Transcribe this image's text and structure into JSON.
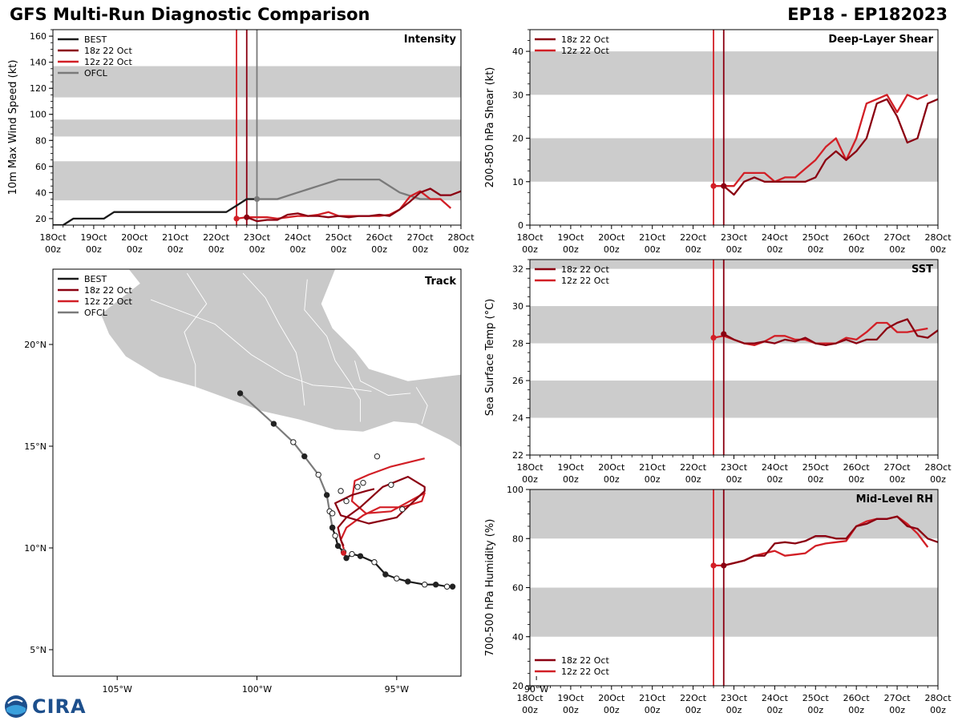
{
  "header": {
    "title_left": "GFS Multi-Run Diagnostic Comparison",
    "title_right": "EP18 - EP182023"
  },
  "time_axis": {
    "ticks": [
      {
        "day": 0,
        "line1": "18Oct",
        "line2": "00z"
      },
      {
        "day": 1,
        "line1": "19Oct",
        "line2": "00z"
      },
      {
        "day": 2,
        "line1": "20Oct",
        "line2": "00z"
      },
      {
        "day": 3,
        "line1": "21Oct",
        "line2": "00z"
      },
      {
        "day": 4,
        "line1": "22Oct",
        "line2": "00z"
      },
      {
        "day": 5,
        "line1": "23Oct",
        "line2": "00z"
      },
      {
        "day": 6,
        "line1": "24Oct",
        "line2": "00z"
      },
      {
        "day": 7,
        "line1": "25Oct",
        "line2": "00z"
      },
      {
        "day": 8,
        "line1": "26Oct",
        "line2": "00z"
      },
      {
        "day": 9,
        "line1": "27Oct",
        "line2": "00z"
      },
      {
        "day": 10,
        "line1": "28Oct",
        "line2": "00z"
      }
    ],
    "xlim": [
      0,
      10
    ]
  },
  "colors": {
    "best": "#1a1a1a",
    "run18": "#8b0011",
    "run12": "#d21f26",
    "ofcl": "#7a7a7a",
    "band": "#cccccc",
    "land": "#c9c9c9"
  },
  "legend_labels": {
    "best": "BEST",
    "run18": "18z 22 Oct",
    "run12": "12z 22 Oct",
    "ofcl": "OFCL"
  },
  "logo": {
    "text": "CIRA"
  },
  "chart_data": [
    {
      "id": "intensity",
      "type": "line",
      "title": "Intensity",
      "ylabel": "10m Max Wind Speed (kt)",
      "ylim": [
        15,
        165
      ],
      "yticks": [
        20,
        40,
        60,
        80,
        100,
        120,
        140,
        160
      ],
      "bands": [
        [
          34,
          64
        ],
        [
          83,
          96
        ],
        [
          113,
          137
        ]
      ],
      "vlines": [
        {
          "x": 4.5,
          "series": "run12"
        },
        {
          "x": 4.75,
          "series": "run18"
        },
        {
          "x": 5.0,
          "series": "ofcl"
        }
      ],
      "legend": [
        "best",
        "run18",
        "run12",
        "ofcl"
      ],
      "series": [
        {
          "key": "best",
          "x": [
            0,
            0.25,
            0.5,
            0.75,
            1.0,
            1.25,
            1.5,
            1.75,
            2,
            2.5,
            3,
            3.5,
            4,
            4.25,
            4.5,
            4.75,
            5.0
          ],
          "y": [
            15,
            15,
            20,
            20,
            20,
            20,
            25,
            25,
            25,
            25,
            25,
            25,
            25,
            25,
            30,
            35,
            35
          ]
        },
        {
          "key": "ofcl",
          "x": [
            5.0,
            5.5,
            6,
            6.5,
            7,
            7.5,
            8,
            8.5,
            9,
            9.5
          ],
          "y": [
            35,
            35,
            40,
            45,
            50,
            50,
            50,
            40,
            35,
            35
          ]
        },
        {
          "key": "run18",
          "x": [
            4.75,
            5.0,
            5.25,
            5.5,
            5.75,
            6,
            6.25,
            6.5,
            6.75,
            7,
            7.25,
            7.5,
            7.75,
            8,
            8.25,
            8.5,
            8.75,
            9,
            9.25,
            9.5,
            9.75,
            10
          ],
          "y": [
            21,
            18,
            19,
            19,
            23,
            24,
            22,
            22,
            21,
            22,
            21,
            22,
            22,
            23,
            22,
            27,
            33,
            40,
            43,
            38,
            38,
            41
          ]
        },
        {
          "key": "run12",
          "x": [
            4.5,
            4.75,
            5.0,
            5.25,
            5.5,
            5.75,
            6,
            6.25,
            6.5,
            6.75,
            7,
            7.25,
            7.5,
            7.75,
            8,
            8.25,
            8.5,
            8.75,
            9,
            9.25,
            9.5,
            9.75
          ],
          "y": [
            20,
            21,
            21,
            21,
            20,
            21,
            22,
            22,
            23,
            25,
            22,
            22,
            22,
            22,
            22,
            23,
            27,
            37,
            41,
            35,
            35,
            28
          ]
        }
      ],
      "markers": [
        {
          "series": "run12",
          "x": 4.5,
          "y": 20
        },
        {
          "series": "run18",
          "x": 4.75,
          "y": 21
        },
        {
          "series": "ofcl",
          "x": 5.0,
          "y": 35
        }
      ]
    },
    {
      "id": "shear",
      "type": "line",
      "title": "Deep-Layer Shear",
      "ylabel": "200-850 hPa Shear (kt)",
      "ylim": [
        0,
        45
      ],
      "yticks": [
        0,
        10,
        20,
        30,
        40
      ],
      "bands": [
        [
          10,
          20
        ],
        [
          30,
          40
        ]
      ],
      "vlines": [
        {
          "x": 4.5,
          "series": "run12"
        },
        {
          "x": 4.75,
          "series": "run18"
        }
      ],
      "legend": [
        "run18",
        "run12"
      ],
      "series": [
        {
          "key": "run18",
          "x": [
            4.75,
            5.0,
            5.25,
            5.5,
            5.75,
            6,
            6.25,
            6.5,
            6.75,
            7,
            7.25,
            7.5,
            7.75,
            8,
            8.25,
            8.5,
            8.75,
            9,
            9.25,
            9.5,
            9.75,
            10
          ],
          "y": [
            9,
            7,
            10,
            11,
            10,
            10,
            10,
            10,
            10,
            11,
            15,
            17,
            15,
            17,
            20,
            28,
            29,
            25,
            19,
            20,
            28,
            29
          ]
        },
        {
          "key": "run12",
          "x": [
            4.5,
            4.75,
            5.0,
            5.25,
            5.5,
            5.75,
            6,
            6.25,
            6.5,
            6.75,
            7,
            7.25,
            7.5,
            7.75,
            8,
            8.25,
            8.5,
            8.75,
            9,
            9.25,
            9.5,
            9.75
          ],
          "y": [
            9,
            9,
            9,
            12,
            12,
            12,
            10,
            11,
            11,
            13,
            15,
            18,
            20,
            15,
            20,
            28,
            29,
            30,
            26,
            30,
            29,
            30
          ]
        }
      ],
      "markers": [
        {
          "series": "run12",
          "x": 4.5,
          "y": 9
        },
        {
          "series": "run18",
          "x": 4.75,
          "y": 9
        }
      ]
    },
    {
      "id": "sst",
      "type": "line",
      "title": "SST",
      "ylabel": "Sea Surface Temp (°C)",
      "ylim": [
        22,
        32.5
      ],
      "yticks": [
        22,
        24,
        26,
        28,
        30,
        32
      ],
      "bands": [
        [
          24,
          26
        ],
        [
          28,
          30
        ],
        [
          32,
          33
        ]
      ],
      "vlines": [
        {
          "x": 4.5,
          "series": "run12"
        },
        {
          "x": 4.75,
          "series": "run18"
        }
      ],
      "legend": [
        "run18",
        "run12"
      ],
      "series": [
        {
          "key": "run18",
          "x": [
            4.75,
            5.0,
            5.25,
            5.5,
            5.75,
            6,
            6.25,
            6.5,
            6.75,
            7,
            7.25,
            7.5,
            7.75,
            8,
            8.25,
            8.5,
            8.75,
            9,
            9.25,
            9.5,
            9.75,
            10
          ],
          "y": [
            28.5,
            28.2,
            28.0,
            28.0,
            28.1,
            28.0,
            28.2,
            28.1,
            28.3,
            28.0,
            27.9,
            28.0,
            28.2,
            28.0,
            28.2,
            28.2,
            28.8,
            29.1,
            29.3,
            28.4,
            28.3,
            28.7
          ]
        },
        {
          "key": "run12",
          "x": [
            4.5,
            4.75,
            5.0,
            5.25,
            5.5,
            5.75,
            6,
            6.25,
            6.5,
            6.75,
            7,
            7.25,
            7.5,
            7.75,
            8,
            8.25,
            8.5,
            8.75,
            9,
            9.25,
            9.5,
            9.75
          ],
          "y": [
            28.3,
            28.4,
            28.2,
            28.0,
            27.9,
            28.1,
            28.4,
            28.4,
            28.2,
            28.2,
            28.0,
            28.0,
            28.0,
            28.3,
            28.2,
            28.6,
            29.1,
            29.1,
            28.6,
            28.6,
            28.7,
            28.8
          ]
        }
      ],
      "markers": [
        {
          "series": "run12",
          "x": 4.5,
          "y": 28.3
        },
        {
          "series": "run18",
          "x": 4.75,
          "y": 28.5
        }
      ]
    },
    {
      "id": "rh",
      "type": "line",
      "title": "Mid-Level RH",
      "ylabel": "700-500 hPa Humidity (%)",
      "ylim": [
        20,
        100
      ],
      "yticks": [
        20,
        40,
        60,
        80,
        100
      ],
      "bands": [
        [
          40,
          60
        ],
        [
          80,
          100
        ]
      ],
      "vlines": [
        {
          "x": 4.5,
          "series": "run12"
        },
        {
          "x": 4.75,
          "series": "run18"
        }
      ],
      "legend": [
        "run18",
        "run12"
      ],
      "legend_pos": "bottom-left",
      "series": [
        {
          "key": "run18",
          "x": [
            4.75,
            5.0,
            5.25,
            5.5,
            5.75,
            6,
            6.25,
            6.5,
            6.75,
            7,
            7.25,
            7.5,
            7.75,
            8,
            8.25,
            8.5,
            8.75,
            9,
            9.25,
            9.5,
            9.75,
            10
          ],
          "y": [
            69,
            70,
            71,
            73,
            73,
            78,
            78.5,
            78,
            79,
            81,
            81,
            80,
            80,
            85,
            86,
            88,
            88,
            89,
            85,
            84,
            80,
            78.5
          ]
        },
        {
          "key": "run12",
          "x": [
            4.5,
            4.75,
            5.0,
            5.25,
            5.5,
            5.75,
            6,
            6.25,
            6.5,
            6.75,
            7,
            7.25,
            7.5,
            7.75,
            8,
            8.25,
            8.5,
            8.75,
            9,
            9.25,
            9.5,
            9.75
          ],
          "y": [
            69,
            69,
            70,
            71,
            73,
            74,
            75,
            73,
            73.5,
            74,
            77,
            78,
            78.5,
            79,
            85,
            87,
            88,
            88,
            89,
            86,
            82,
            76.5
          ]
        }
      ],
      "markers": [
        {
          "series": "run12",
          "x": 4.5,
          "y": 69
        },
        {
          "series": "run18",
          "x": 4.75,
          "y": 69
        }
      ]
    },
    {
      "id": "track",
      "type": "scatter",
      "title": "Track",
      "xlim": [
        -107.3,
        -92.7
      ],
      "ylim": [
        3.7,
        23.7
      ],
      "xticks": [
        {
          "v": -105,
          "label": "105°W"
        },
        {
          "v": -100,
          "label": "100°W"
        },
        {
          "v": -95,
          "label": "95°W"
        },
        {
          "v": -90,
          "label": "90°W"
        }
      ],
      "yticks": [
        {
          "v": 5,
          "label": "5°N"
        },
        {
          "v": 10,
          "label": "10°N"
        },
        {
          "v": 15,
          "label": "15°N"
        },
        {
          "v": 20,
          "label": "20°N"
        }
      ],
      "legend": [
        "best",
        "run18",
        "run12",
        "ofcl"
      ],
      "series": [
        {
          "key": "best",
          "lon": [
            -93.0,
            -93.2,
            -93.6,
            -94.0,
            -94.6,
            -95.0,
            -95.4,
            -95.8,
            -96.3,
            -96.6,
            -96.8,
            -96.9,
            -97.1,
            -97.2,
            -97.3
          ],
          "lat": [
            8.1,
            8.1,
            8.2,
            8.2,
            8.35,
            8.5,
            8.7,
            9.3,
            9.6,
            9.7,
            9.5,
            9.8,
            10.1,
            10.6,
            11.0
          ],
          "filled": [
            true,
            false,
            true,
            false,
            true,
            false,
            true,
            false,
            true,
            false,
            true,
            false,
            true,
            false,
            true
          ]
        },
        {
          "key": "ofcl",
          "lon": [
            -97.3,
            -97.4,
            -97.5,
            -97.8,
            -98.3,
            -98.7,
            -99.4,
            -100.6
          ],
          "lat": [
            11.0,
            11.8,
            12.6,
            13.6,
            14.5,
            15.2,
            16.1,
            17.6
          ],
          "filled": [
            true,
            false,
            true,
            false,
            true,
            false,
            true,
            true
          ]
        },
        {
          "key": "run18",
          "lon": [
            -96.9,
            -97.0,
            -97.1,
            -96.8,
            -96.3,
            -95.5,
            -94.6,
            -94.0,
            -94.0,
            -95.0,
            -96.0,
            -97.0,
            -97.2,
            -96.6,
            -96.1,
            -95.8
          ],
          "lat": [
            10.1,
            10.4,
            11.0,
            11.5,
            12.0,
            13.0,
            13.5,
            13.0,
            12.8,
            11.5,
            11.2,
            11.6,
            12.2,
            12.6,
            12.8,
            12.9
          ],
          "filled": [
            true,
            false,
            true,
            false,
            true,
            false,
            true,
            false,
            true,
            false,
            true,
            false,
            true,
            false,
            true,
            true
          ]
        },
        {
          "key": "run12",
          "lon": [
            -96.9,
            -96.9,
            -97.0,
            -96.8,
            -96.2,
            -95.6,
            -94.8,
            -94.1,
            -94.0,
            -95.2,
            -96.1,
            -96.6,
            -96.5,
            -96.0,
            -95.2,
            -94.0
          ],
          "lat": [
            9.7,
            10.0,
            10.4,
            11.0,
            11.6,
            12.0,
            12.0,
            12.3,
            12.7,
            11.8,
            11.7,
            12.3,
            13.3,
            13.6,
            14.0,
            14.4
          ],
          "filled": [
            true,
            false,
            false,
            false,
            false,
            false,
            false,
            false,
            false,
            false,
            false,
            false,
            false,
            false,
            false,
            false
          ]
        }
      ],
      "extra_points": [
        {
          "lon": -95.7,
          "lat": 14.5,
          "filled": false
        },
        {
          "lon": -95.2,
          "lat": 13.1,
          "filled": false
        },
        {
          "lon": -96.2,
          "lat": 13.2,
          "filled": false
        },
        {
          "lon": -96.4,
          "lat": 13.0,
          "filled": false
        },
        {
          "lon": -97.0,
          "lat": 12.8,
          "filled": false
        },
        {
          "lon": -96.8,
          "lat": 12.3,
          "filled": false
        },
        {
          "lon": -97.3,
          "lat": 11.7,
          "filled": false
        },
        {
          "lon": -94.8,
          "lat": 11.9,
          "filled": false
        }
      ]
    }
  ]
}
